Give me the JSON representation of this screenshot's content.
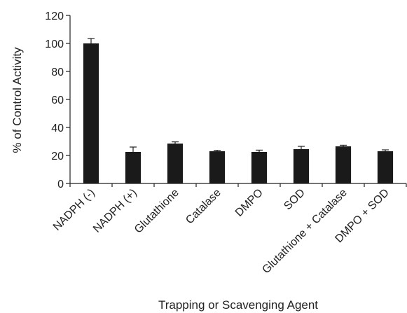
{
  "chart_data": {
    "type": "bar",
    "title": "",
    "xlabel": "Trapping or Scavenging Agent",
    "ylabel": "% of Control Activity",
    "ylim": [
      0,
      120
    ],
    "yticks": [
      0,
      20,
      40,
      60,
      80,
      100,
      120
    ],
    "grid": false,
    "legend": "none",
    "categories": [
      "NADPH (-)",
      "NADPH (+)",
      "Glutathione",
      "Catalase",
      "DMPO",
      "SOD",
      "Glutathione + Catalase",
      "DMPO + SOD"
    ],
    "series": [
      {
        "values": [
          100,
          22.5,
          28.5,
          23,
          22.5,
          24.5,
          26.5,
          23
        ],
        "errors": [
          3.5,
          3.5,
          1.2,
          0.7,
          1.3,
          2,
          0.8,
          1
        ],
        "color": "#1a1a1a"
      }
    ]
  }
}
